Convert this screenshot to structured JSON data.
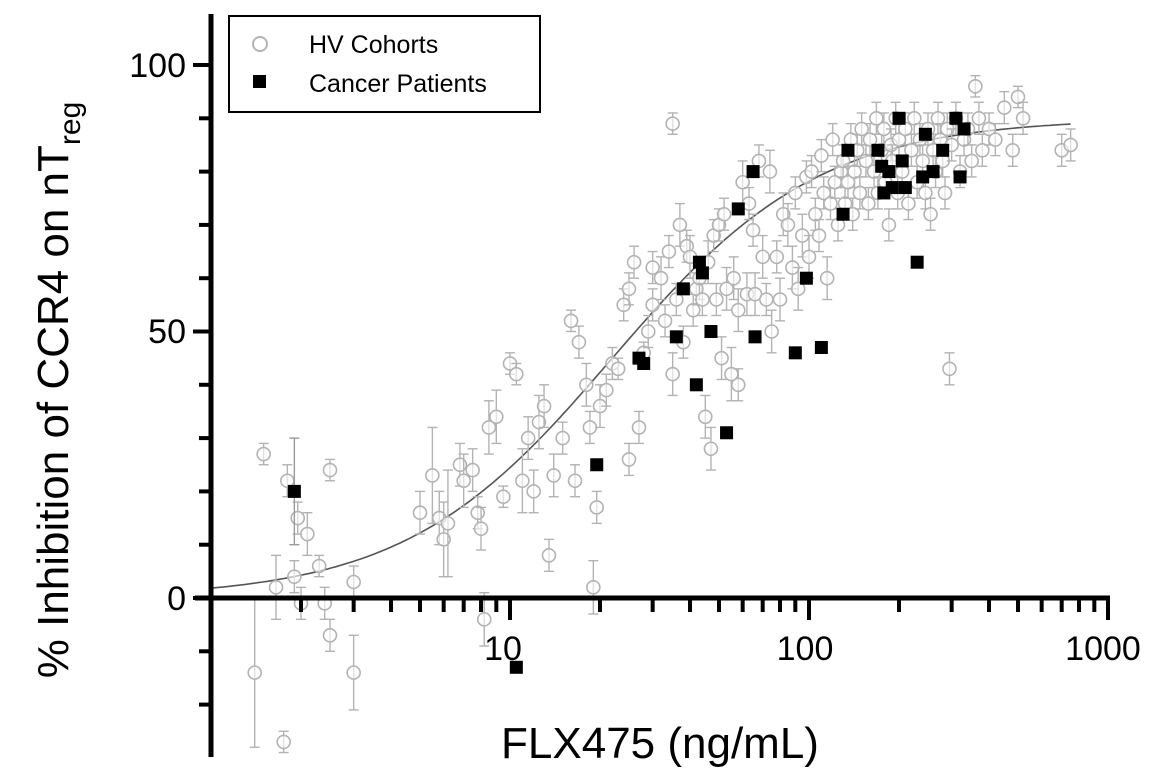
{
  "chart_data": {
    "type": "scatter",
    "xscale": "log",
    "xlim": [
      1,
      1000
    ],
    "ylim": [
      -25,
      110
    ],
    "xlabel": "FLX475 (ng/mL)",
    "ylabel_main": "% Inhibition of CCR4 on nT",
    "ylabel_sub": "reg",
    "x_ticks": [
      {
        "value": 10,
        "label": "10"
      },
      {
        "value": 100,
        "label": "100"
      },
      {
        "value": 1000,
        "label": "1000"
      }
    ],
    "y_ticks": [
      {
        "value": 0,
        "label": "0"
      },
      {
        "value": 50,
        "label": "50"
      },
      {
        "value": 100,
        "label": "100"
      }
    ],
    "legend": {
      "position": "top-left",
      "entries": [
        {
          "label": "HV Cohorts",
          "marker": "open-circle"
        },
        {
          "label": "Cancer Patients",
          "marker": "filled-square"
        }
      ]
    },
    "colors": {
      "hv": "#b3b3b3",
      "cancer": "#000000",
      "curve": "#555555",
      "axis": "#000000"
    },
    "fit_curve": {
      "model": "sigmoid",
      "bottom": 0,
      "top": 90,
      "ec50": 22,
      "hill": 1.25,
      "x_range": [
        1,
        750
      ]
    },
    "series": [
      {
        "name": "HV Cohorts",
        "points": [
          [
            1.4,
            -14,
            14
          ],
          [
            1.5,
            27,
            2
          ],
          [
            1.65,
            2,
            6
          ],
          [
            1.75,
            -27,
            2
          ],
          [
            1.8,
            22,
            3
          ],
          [
            1.9,
            4,
            3
          ],
          [
            1.95,
            15,
            3
          ],
          [
            2.0,
            -1,
            3
          ],
          [
            2.1,
            12,
            4
          ],
          [
            2.3,
            6,
            2
          ],
          [
            2.4,
            -1,
            3
          ],
          [
            2.5,
            -7,
            3
          ],
          [
            2.5,
            24,
            2
          ],
          [
            3.0,
            3,
            3
          ],
          [
            3.0,
            -14,
            7
          ],
          [
            5.0,
            16,
            4
          ],
          [
            5.5,
            23,
            9
          ],
          [
            5.8,
            15,
            5
          ],
          [
            6.0,
            11,
            7
          ],
          [
            6.2,
            14,
            10
          ],
          [
            6.8,
            25,
            4
          ],
          [
            7.0,
            22,
            5
          ],
          [
            7.5,
            24,
            4
          ],
          [
            7.8,
            16,
            3
          ],
          [
            8.0,
            13,
            4
          ],
          [
            8.2,
            -4,
            5
          ],
          [
            8.5,
            32,
            5
          ],
          [
            9.0,
            34,
            5
          ],
          [
            9.5,
            19,
            2
          ],
          [
            10.0,
            44,
            2
          ],
          [
            10.5,
            42,
            2
          ],
          [
            11.0,
            22,
            6
          ],
          [
            11.5,
            30,
            4
          ],
          [
            12.0,
            20,
            4
          ],
          [
            12.5,
            33,
            5
          ],
          [
            13.0,
            36,
            4
          ],
          [
            13.5,
            8,
            3
          ],
          [
            14.0,
            23,
            4
          ],
          [
            15.0,
            30,
            3
          ],
          [
            16.0,
            52,
            2
          ],
          [
            16.5,
            22,
            3
          ],
          [
            17.0,
            48,
            3
          ],
          [
            18.0,
            40,
            4
          ],
          [
            18.5,
            32,
            3
          ],
          [
            19.0,
            2,
            5
          ],
          [
            19.5,
            17,
            3
          ],
          [
            20.0,
            36,
            4
          ],
          [
            21.0,
            39,
            3
          ],
          [
            22.0,
            44,
            3
          ],
          [
            23.0,
            43,
            2
          ],
          [
            24.0,
            55,
            3
          ],
          [
            25.0,
            58,
            3
          ],
          [
            25.0,
            26,
            3
          ],
          [
            26.0,
            63,
            3
          ],
          [
            27.0,
            32,
            3
          ],
          [
            28.0,
            46,
            2
          ],
          [
            29.0,
            50,
            3
          ],
          [
            30.0,
            55,
            3
          ],
          [
            30.0,
            62,
            3
          ],
          [
            32.0,
            60,
            4
          ],
          [
            33.0,
            52,
            3
          ],
          [
            34.0,
            65,
            3
          ],
          [
            35.0,
            42,
            4
          ],
          [
            35.0,
            89,
            2
          ],
          [
            36.0,
            56,
            3
          ],
          [
            37.0,
            70,
            4
          ],
          [
            38.0,
            48,
            3
          ],
          [
            39.0,
            66,
            3
          ],
          [
            40.0,
            64,
            4
          ],
          [
            41.0,
            54,
            3
          ],
          [
            42.0,
            58,
            3
          ],
          [
            43.0,
            60,
            4
          ],
          [
            44.0,
            56,
            3
          ],
          [
            45.0,
            34,
            4
          ],
          [
            46.0,
            63,
            4
          ],
          [
            47.0,
            28,
            4
          ],
          [
            48.0,
            68,
            3
          ],
          [
            49.0,
            56,
            3
          ],
          [
            50.0,
            70,
            3
          ],
          [
            51.0,
            45,
            4
          ],
          [
            52.0,
            72,
            3
          ],
          [
            53.0,
            58,
            4
          ],
          [
            55.0,
            42,
            5
          ],
          [
            56.0,
            60,
            4
          ],
          [
            58.0,
            54,
            4
          ],
          [
            58.0,
            40,
            3
          ],
          [
            60.0,
            78,
            4
          ],
          [
            62.0,
            57,
            4
          ],
          [
            63.0,
            74,
            3
          ],
          [
            65.0,
            69,
            3
          ],
          [
            66.0,
            57,
            4
          ],
          [
            68.0,
            82,
            3
          ],
          [
            70.0,
            64,
            4
          ],
          [
            72.0,
            56,
            3
          ],
          [
            74.0,
            80,
            4
          ],
          [
            75.0,
            50,
            4
          ],
          [
            78.0,
            64,
            3
          ],
          [
            80.0,
            56,
            4
          ],
          [
            82.0,
            72,
            4
          ],
          [
            85.0,
            70,
            4
          ],
          [
            88.0,
            62,
            4
          ],
          [
            90.0,
            76,
            3
          ],
          [
            92.0,
            58,
            4
          ],
          [
            95.0,
            68,
            4
          ],
          [
            98.0,
            79,
            3
          ],
          [
            100.0,
            64,
            4
          ],
          [
            102.0,
            80,
            3
          ],
          [
            105.0,
            72,
            3
          ],
          [
            108.0,
            68,
            3
          ],
          [
            110.0,
            83,
            3
          ],
          [
            112.0,
            76,
            3
          ],
          [
            115.0,
            60,
            4
          ],
          [
            118.0,
            74,
            3
          ],
          [
            120.0,
            86,
            3
          ],
          [
            122.0,
            78,
            3
          ],
          [
            125.0,
            70,
            3
          ],
          [
            128.0,
            80,
            3
          ],
          [
            130.0,
            82,
            3
          ],
          [
            132.0,
            74,
            3
          ],
          [
            135.0,
            78,
            3
          ],
          [
            138.0,
            86,
            3
          ],
          [
            140.0,
            72,
            3
          ],
          [
            142.0,
            80,
            3
          ],
          [
            145.0,
            84,
            3
          ],
          [
            148.0,
            76,
            3
          ],
          [
            150.0,
            88,
            3
          ],
          [
            155.0,
            82,
            3
          ],
          [
            158.0,
            74,
            3
          ],
          [
            160.0,
            86,
            3
          ],
          [
            165.0,
            80,
            3
          ],
          [
            168.0,
            90,
            3
          ],
          [
            170.0,
            76,
            3
          ],
          [
            175.0,
            84,
            3
          ],
          [
            178.0,
            88,
            3
          ],
          [
            180.0,
            78,
            3
          ],
          [
            185.0,
            70,
            3
          ],
          [
            188.0,
            85,
            3
          ],
          [
            190.0,
            82,
            3
          ],
          [
            195.0,
            90,
            3
          ],
          [
            198.0,
            76,
            3
          ],
          [
            200.0,
            86,
            3
          ],
          [
            205.0,
            80,
            3
          ],
          [
            210.0,
            88,
            3
          ],
          [
            215.0,
            74,
            3
          ],
          [
            220.0,
            84,
            3
          ],
          [
            225.0,
            90,
            3
          ],
          [
            230.0,
            78,
            3
          ],
          [
            235.0,
            86,
            3
          ],
          [
            240.0,
            82,
            3
          ],
          [
            245.0,
            76,
            3
          ],
          [
            250.0,
            88,
            3
          ],
          [
            255.0,
            72,
            3
          ],
          [
            260.0,
            84,
            3
          ],
          [
            265.0,
            80,
            3
          ],
          [
            270.0,
            90,
            3
          ],
          [
            275.0,
            86,
            3
          ],
          [
            280.0,
            82,
            3
          ],
          [
            285.0,
            76,
            3
          ],
          [
            290.0,
            88,
            3
          ],
          [
            295.0,
            43,
            3
          ],
          [
            300.0,
            85,
            3
          ],
          [
            310.0,
            90,
            3
          ],
          [
            320.0,
            80,
            3
          ],
          [
            330.0,
            86,
            3
          ],
          [
            340.0,
            88,
            3
          ],
          [
            350.0,
            82,
            3
          ],
          [
            360.0,
            96,
            2
          ],
          [
            370.0,
            90,
            3
          ],
          [
            380.0,
            84,
            3
          ],
          [
            400.0,
            88,
            3
          ],
          [
            420.0,
            86,
            3
          ],
          [
            450.0,
            92,
            3
          ],
          [
            480.0,
            84,
            3
          ],
          [
            500.0,
            94,
            2
          ],
          [
            520.0,
            90,
            3
          ],
          [
            700.0,
            84,
            3
          ],
          [
            750.0,
            85,
            3
          ]
        ]
      },
      {
        "name": "Cancer Patients",
        "points": [
          [
            1.9,
            20,
            10
          ],
          [
            10.5,
            -13,
            0
          ],
          [
            19.5,
            25,
            0
          ],
          [
            27.0,
            45,
            0
          ],
          [
            28.0,
            44,
            0
          ],
          [
            36.0,
            49,
            0
          ],
          [
            38.0,
            58,
            0
          ],
          [
            42.0,
            40,
            0
          ],
          [
            43.0,
            63,
            0
          ],
          [
            44.0,
            61,
            0
          ],
          [
            47.0,
            50,
            0
          ],
          [
            53.0,
            31,
            0
          ],
          [
            58.0,
            73,
            0
          ],
          [
            65.0,
            80,
            0
          ],
          [
            66.0,
            49,
            0
          ],
          [
            90.0,
            46,
            0
          ],
          [
            98.0,
            60,
            0
          ],
          [
            110.0,
            47,
            0
          ],
          [
            130.0,
            72,
            0
          ],
          [
            135.0,
            84,
            0
          ],
          [
            170.0,
            84,
            0
          ],
          [
            175.0,
            81,
            0
          ],
          [
            178.0,
            76,
            0
          ],
          [
            185.0,
            80,
            0
          ],
          [
            190.0,
            77,
            0
          ],
          [
            200.0,
            90,
            0
          ],
          [
            205.0,
            82,
            0
          ],
          [
            210.0,
            77,
            0
          ],
          [
            230.0,
            63,
            0
          ],
          [
            240.0,
            79,
            0
          ],
          [
            245.0,
            87,
            0
          ],
          [
            260.0,
            80,
            0
          ],
          [
            280.0,
            84,
            0
          ],
          [
            310.0,
            90,
            0
          ],
          [
            320.0,
            79,
            0
          ],
          [
            330.0,
            88,
            0
          ]
        ]
      }
    ]
  }
}
